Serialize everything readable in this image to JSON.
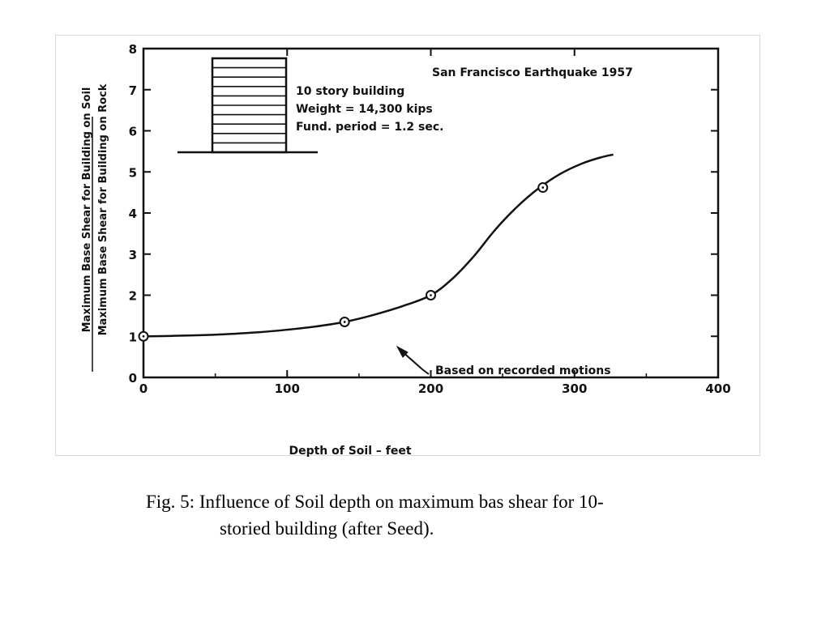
{
  "caption": {
    "line1": "Fig. 5:  Influence of Soil depth on maximum bas shear for 10-",
    "line2": "storied building  (after Seed)."
  },
  "chart_data": {
    "type": "line",
    "xlabel": "Depth of Soil – feet",
    "ylabel_numerator": "Maximum Base Shear for Building on Soil",
    "ylabel_denominator": "Maximum Base Shear for Building on Rock",
    "xlim": [
      0,
      400
    ],
    "ylim": [
      0,
      8
    ],
    "x_ticks": [
      "0",
      "100",
      "200",
      "300",
      "400"
    ],
    "y_ticks": [
      "0",
      "1",
      "2",
      "3",
      "4",
      "5",
      "6",
      "7",
      "8"
    ],
    "grid": false,
    "series": [
      {
        "curve_x": [
          0,
          20,
          50,
          80,
          100,
          120,
          140,
          160,
          180,
          200,
          215,
          230,
          245,
          260,
          275,
          290,
          305,
          318,
          327
        ],
        "curve_y": [
          1.0,
          1.01,
          1.04,
          1.1,
          1.16,
          1.24,
          1.35,
          1.52,
          1.73,
          2.0,
          2.4,
          2.95,
          3.6,
          4.15,
          4.6,
          4.95,
          5.2,
          5.35,
          5.42
        ],
        "points_x": [
          0,
          140,
          200,
          278
        ],
        "points_y": [
          1.0,
          1.35,
          2.0,
          4.62
        ]
      }
    ],
    "annotations": {
      "event": "San Francisco Earthquake 1957",
      "building_line1": "10 story building",
      "building_line2": "Weight = 14,300 kips",
      "building_line3": "Fund. period = 1.2 sec.",
      "curve_note": "Based on recorded motions"
    },
    "building_stories": 10
  }
}
